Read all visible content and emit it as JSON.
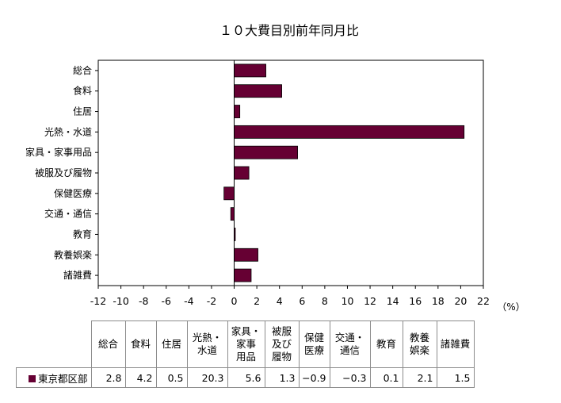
{
  "colors": {
    "bar": "#660033",
    "grid": "#000000"
  },
  "chart_data": {
    "type": "bar",
    "orientation": "horizontal",
    "title": "１０大費目別前年同月比",
    "unit": "（%）",
    "categories": [
      "総合",
      "食料",
      "住居",
      "光熱・水道",
      "家具・家事用品",
      "被服及び履物",
      "保健医療",
      "交通・通信",
      "教育",
      "教養娯楽",
      "諸雑費"
    ],
    "series": [
      {
        "name": "東京都区部",
        "values": [
          2.8,
          4.2,
          0.5,
          20.3,
          5.6,
          1.3,
          -0.9,
          -0.3,
          0.1,
          2.1,
          1.5
        ]
      }
    ],
    "xlim": [
      -12,
      22
    ],
    "xticks": [
      -12,
      -10,
      -8,
      -6,
      -4,
      -2,
      0,
      2,
      4,
      6,
      8,
      10,
      12,
      14,
      16,
      18,
      20,
      22
    ],
    "grid": false,
    "legend": "none"
  },
  "table": {
    "headers": [
      [
        "総合"
      ],
      [
        "食料"
      ],
      [
        "住居"
      ],
      [
        "光熱・",
        "水道"
      ],
      [
        "家具・",
        "家事",
        "用品"
      ],
      [
        "被服",
        "及び",
        "履物"
      ],
      [
        "保健",
        "医療"
      ],
      [
        "交通・",
        "通信"
      ],
      [
        "教育"
      ],
      [
        "教養",
        "娯楽"
      ],
      [
        "諸雑費"
      ]
    ],
    "row_label": "東京都区部",
    "values": [
      "2.8",
      "4.2",
      "0.5",
      "20.3",
      "5.6",
      "1.3",
      "−0.9",
      "−0.3",
      "0.1",
      "2.1",
      "1.5"
    ]
  }
}
